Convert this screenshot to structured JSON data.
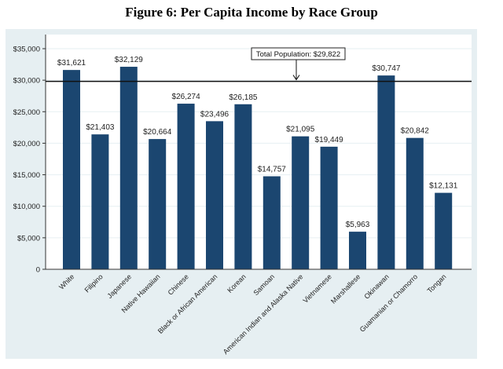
{
  "chart_data": {
    "type": "bar",
    "title": "Figure 6: Per Capita Income by Race Group",
    "xlabel": "",
    "ylabel": "",
    "ylim": [
      0,
      35000
    ],
    "yticks": [
      0,
      5000,
      10000,
      15000,
      20000,
      25000,
      30000,
      35000
    ],
    "ytick_labels": [
      "0",
      "$5,000",
      "$10,000",
      "$15,000",
      "$20,000",
      "$25,000",
      "$30,000",
      "$35,000"
    ],
    "categories": [
      "White",
      "Filipino",
      "Japanese",
      "Native Hawaiian",
      "Chinese",
      "Black or African American",
      "Korean",
      "Samoan",
      "American Indian and Alaska Native",
      "Vietnamese",
      "Marshallese",
      "Okinawan",
      "Guamanian or Chamorro",
      "Tongan"
    ],
    "values": [
      31621,
      21403,
      32129,
      20664,
      26274,
      23496,
      26185,
      14757,
      21095,
      19449,
      5963,
      30747,
      20842,
      12131
    ],
    "data_labels": [
      "$31,621",
      "$21,403",
      "$32,129",
      "$20,664",
      "$26,274",
      "$23,496",
      "$26,185",
      "$14,757",
      "$21,095",
      "$19,449",
      "$5,963",
      "$30,747",
      "$20,842",
      "$12,131"
    ],
    "reference_line": {
      "value": 29822,
      "label": "Total Population: $29,822"
    },
    "grid": true,
    "colors": {
      "bar": "#1b4670",
      "panel": "#e6eff2",
      "plot": "#ffffff",
      "grid": "#e6eff2"
    }
  }
}
